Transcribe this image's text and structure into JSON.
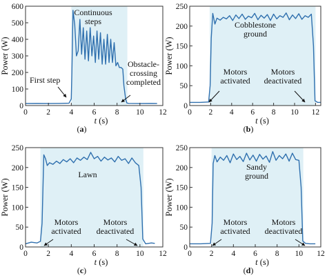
{
  "chart_data": [
    {
      "type": "line",
      "panel_label": "(a)",
      "panel_letter": "a",
      "xlabel": "t (s)",
      "xlabel_var": "t",
      "xlabel_unit": " (s)",
      "ylabel": "Power (W)",
      "xlim": [
        0,
        12
      ],
      "ylim": [
        0,
        600
      ],
      "xticks": [
        0,
        2,
        4,
        6,
        8,
        10,
        12
      ],
      "yticks": [
        0,
        100,
        200,
        300,
        400,
        500,
        600
      ],
      "grid": false,
      "shaded_region": [
        4.0,
        8.9
      ],
      "colors": {
        "line": "#2e6fae",
        "shade": "#dff0f6",
        "axis": "#333333"
      },
      "series": [
        {
          "x": [
            0,
            1,
            2,
            3,
            3.8,
            4.0,
            4.05,
            4.15,
            4.3,
            4.45,
            4.6,
            4.75,
            4.9,
            5.05,
            5.2,
            5.35,
            5.5,
            5.65,
            5.8,
            5.95,
            6.1,
            6.25,
            6.4,
            6.55,
            6.7,
            6.85,
            7.0,
            7.15,
            7.3,
            7.45,
            7.6,
            7.75,
            7.9,
            8.05,
            8.2,
            8.35,
            8.5,
            8.6,
            8.75,
            8.85,
            9.0,
            10,
            11,
            11.5
          ],
          "values": [
            12,
            13,
            12,
            13,
            14,
            40,
            200,
            575,
            490,
            300,
            330,
            520,
            310,
            470,
            280,
            450,
            270,
            470,
            300,
            420,
            260,
            450,
            280,
            440,
            250,
            400,
            250,
            430,
            260,
            400,
            260,
            380,
            240,
            260,
            230,
            230,
            220,
            120,
            40,
            16,
            13,
            12,
            13,
            12
          ]
        }
      ],
      "annotations": [
        {
          "text": "Continuous steps",
          "lines": [
            "Continuous",
            "steps"
          ]
        },
        {
          "text": "First step",
          "lines": [
            "First step"
          ]
        },
        {
          "text": "Obstacle-crossing completed",
          "lines": [
            "Obstacle-",
            "crossing",
            "completed"
          ]
        }
      ]
    },
    {
      "type": "line",
      "panel_label": "(b)",
      "panel_letter": "b",
      "xlabel": "t (s)",
      "xlabel_var": "t",
      "xlabel_unit": " (s)",
      "ylabel": "Power (W)",
      "xlim": [
        0,
        12.5
      ],
      "ylim": [
        0,
        250
      ],
      "xticks": [
        0,
        2,
        4,
        6,
        8,
        10,
        12
      ],
      "yticks": [
        0,
        50,
        100,
        150,
        200,
        250
      ],
      "grid": false,
      "shaded_region": [
        1.9,
        12.0
      ],
      "colors": {
        "line": "#2e6fae",
        "shade": "#dff0f6",
        "axis": "#333333"
      },
      "series": [
        {
          "x": [
            0,
            1,
            1.8,
            1.95,
            2.05,
            2.2,
            2.4,
            2.6,
            2.9,
            3.2,
            3.5,
            3.8,
            4.1,
            4.4,
            4.7,
            5.0,
            5.3,
            5.6,
            5.9,
            6.2,
            6.5,
            6.8,
            7.1,
            7.4,
            7.7,
            8.0,
            8.3,
            8.6,
            8.9,
            9.2,
            9.5,
            9.8,
            10.1,
            10.4,
            10.7,
            11.0,
            11.3,
            11.6,
            11.8,
            11.95,
            12.2,
            12.5
          ],
          "values": [
            8,
            8,
            9,
            50,
            170,
            232,
            205,
            220,
            215,
            222,
            218,
            226,
            214,
            228,
            219,
            230,
            217,
            225,
            221,
            232,
            216,
            227,
            220,
            229,
            214,
            230,
            218,
            226,
            222,
            233,
            216,
            228,
            219,
            231,
            217,
            226,
            222,
            230,
            150,
            12,
            8,
            8
          ]
        }
      ],
      "annotations": [
        {
          "text": "Cobblestone ground",
          "lines": [
            "Cobblestone",
            "ground"
          ]
        },
        {
          "text": "Motors activated",
          "lines": [
            "Motors",
            "activated"
          ]
        },
        {
          "text": "Motors deactivated",
          "lines": [
            "Motors",
            "deactivated"
          ]
        }
      ]
    },
    {
      "type": "line",
      "panel_label": "(c)",
      "panel_letter": "c",
      "xlabel": "t (s)",
      "xlabel_var": "t",
      "xlabel_unit": " (s)",
      "ylabel": "Power (W)",
      "xlim": [
        0,
        12
      ],
      "ylim": [
        0,
        250
      ],
      "xticks": [
        0,
        2,
        4,
        6,
        8,
        10,
        12
      ],
      "yticks": [
        0,
        50,
        100,
        150,
        200,
        250
      ],
      "grid": false,
      "shaded_region": [
        1.3,
        10.3
      ],
      "colors": {
        "line": "#2e6fae",
        "shade": "#dff0f6",
        "axis": "#333333"
      },
      "series": [
        {
          "x": [
            0,
            0.5,
            1.0,
            1.3,
            1.45,
            1.6,
            1.75,
            1.9,
            2.1,
            2.4,
            2.7,
            3.0,
            3.3,
            3.6,
            3.9,
            4.2,
            4.5,
            4.8,
            5.1,
            5.4,
            5.7,
            6.0,
            6.3,
            6.6,
            6.9,
            7.2,
            7.5,
            7.8,
            8.1,
            8.4,
            8.7,
            9.0,
            9.3,
            9.6,
            9.9,
            10.1,
            10.25,
            10.5,
            11.0,
            11.3
          ],
          "values": [
            8,
            12,
            10,
            14,
            60,
            232,
            222,
            205,
            212,
            208,
            216,
            210,
            220,
            214,
            222,
            212,
            224,
            218,
            226,
            220,
            238,
            222,
            228,
            216,
            226,
            219,
            224,
            214,
            228,
            218,
            222,
            210,
            224,
            212,
            205,
            150,
            20,
            8,
            10,
            9
          ]
        }
      ],
      "annotations": [
        {
          "text": "Lawn",
          "lines": [
            "Lawn"
          ]
        },
        {
          "text": "Motors activated",
          "lines": [
            "Motors",
            "activated"
          ]
        },
        {
          "text": "Motors deactivated",
          "lines": [
            "Motors",
            "deactivated"
          ]
        }
      ]
    },
    {
      "type": "line",
      "panel_label": "(d)",
      "panel_letter": "d",
      "xlabel": "t (s)",
      "xlabel_var": "t",
      "xlabel_unit": " (s)",
      "ylabel": "Power (W)",
      "xlim": [
        0,
        12
      ],
      "ylim": [
        0,
        250
      ],
      "xticks": [
        0,
        2,
        4,
        6,
        8,
        10,
        12
      ],
      "yticks": [
        0,
        50,
        100,
        150,
        200,
        250
      ],
      "grid": false,
      "shaded_region": [
        2.0,
        10.4
      ],
      "colors": {
        "line": "#2e6fae",
        "shade": "#dff0f6",
        "axis": "#333333"
      },
      "series": [
        {
          "x": [
            0,
            1,
            1.9,
            2.05,
            2.15,
            2.3,
            2.5,
            2.8,
            3.1,
            3.4,
            3.7,
            4.0,
            4.3,
            4.6,
            4.9,
            5.2,
            5.5,
            5.8,
            6.1,
            6.4,
            6.7,
            7.0,
            7.3,
            7.6,
            7.9,
            8.2,
            8.5,
            8.8,
            9.1,
            9.4,
            9.7,
            10.0,
            10.2,
            10.35,
            10.6,
            11.0,
            11.5
          ],
          "values": [
            8,
            8,
            9,
            60,
            210,
            230,
            214,
            226,
            218,
            230,
            212,
            234,
            220,
            228,
            215,
            236,
            219,
            231,
            216,
            233,
            221,
            229,
            213,
            240,
            218,
            230,
            222,
            234,
            216,
            236,
            220,
            218,
            150,
            15,
            9,
            8,
            8
          ]
        }
      ],
      "annotations": [
        {
          "text": "Sandy ground",
          "lines": [
            "Sandy",
            "ground"
          ]
        },
        {
          "text": "Motors activated",
          "lines": [
            "Motors",
            "activated"
          ]
        },
        {
          "text": "Motors deactivated",
          "lines": [
            "Motors",
            "deactivated"
          ]
        }
      ]
    }
  ]
}
